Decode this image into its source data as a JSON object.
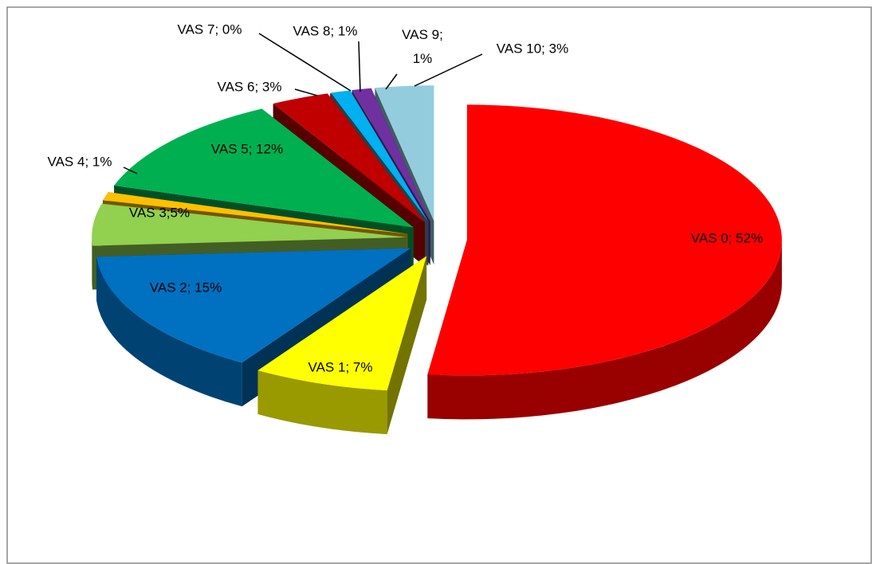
{
  "chart_data": {
    "type": "pie3d",
    "categories": [
      "VAS 0",
      "VAS 1",
      "VAS 2",
      "VAS 3",
      "VAS 4",
      "VAS 5",
      "VAS 6",
      "VAS 7",
      "VAS 8",
      "VAS 9",
      "VAS 10"
    ],
    "values": [
      52,
      7,
      15,
      5,
      1,
      12,
      3,
      0,
      1,
      1,
      3
    ],
    "value_labels": [
      "VAS 0; 52%",
      "VAS 1; 7%",
      "VAS 2; 15%",
      "VAS 3;5%",
      "VAS 4; 1%",
      "VAS 5; 12%",
      "VAS 6; 3%",
      "VAS 7; 0%",
      "VAS 8; 1%",
      "VAS 9;\n1%",
      "VAS 10; 3%"
    ],
    "colors": [
      "#ff0000",
      "#ffff00",
      "#0070c0",
      "#92d050",
      "#ffc000",
      "#00b050",
      "#c00000",
      "#7f7f7f",
      "#00b0f0",
      "#7030a0",
      "#93cddd"
    ],
    "exploded": true
  }
}
